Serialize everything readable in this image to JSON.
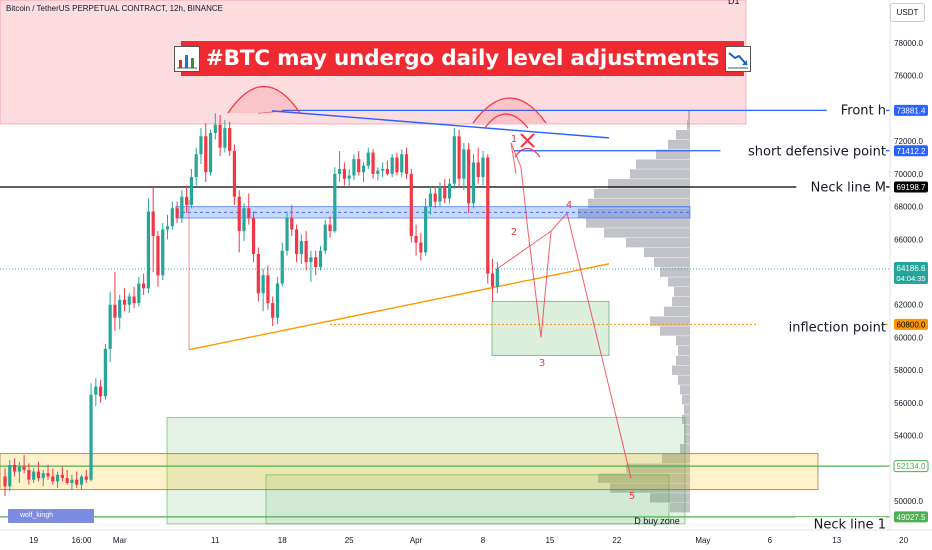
{
  "header": {
    "symbol_title": "Bitcoin / TetherUS PERPETUAL CONTRACT, 12h, BINANCE",
    "timeframe_stub": "D1",
    "currency_button": "USDT"
  },
  "headline": {
    "text": "#BTC may undergo daily level adjustments",
    "left_icon": "bar-chart-icon",
    "right_icon": "chart-decreasing-icon"
  },
  "watermark": "wolf_kingh",
  "colors": {
    "bull": "#26a69a",
    "bear": "#f23645",
    "headline_bg": "#ef2a31",
    "blue_line": "#2962ff",
    "orange_line": "#ff9800",
    "green_line": "#4caf50",
    "projection": "#f23645"
  },
  "chart_data": {
    "type": "candlestick",
    "title": "Bitcoin / TetherUS PERPETUAL CONTRACT, 12h, BINANCE",
    "ylim": [
      49000,
      80000
    ],
    "y_ticks": [
      50000,
      52000,
      54000,
      56000,
      58000,
      60000,
      62000,
      64000,
      66000,
      68000,
      70000,
      72000,
      74000,
      76000,
      78000
    ],
    "y_tick_labels": [
      "50000.0",
      "52000.0",
      "54000.0",
      "56000.0",
      "58000.0",
      "60000.0",
      "62000.0",
      "64000.0",
      "66000.0",
      "68000.0",
      "70000.0",
      "72000.0",
      "74000.0",
      "76000.0",
      "78000.0"
    ],
    "x_ticks": [
      {
        "label": "19",
        "bar": 6
      },
      {
        "label": "16:00",
        "bar": 16
      },
      {
        "label": "Mar",
        "bar": 24
      },
      {
        "label": "11",
        "bar": 44
      },
      {
        "label": "18",
        "bar": 58
      },
      {
        "label": "25",
        "bar": 72
      },
      {
        "label": "Apr",
        "bar": 86
      },
      {
        "label": "8",
        "bar": 100
      },
      {
        "label": "15",
        "bar": 114
      },
      {
        "label": "22",
        "bar": 128
      },
      {
        "label": "May",
        "bar": 146
      },
      {
        "label": "6",
        "bar": 160
      },
      {
        "label": "13",
        "bar": 174
      },
      {
        "label": "20",
        "bar": 188
      }
    ],
    "candles": [
      {
        "o": 51500,
        "h": 52000,
        "l": 50300,
        "c": 50900
      },
      {
        "o": 50900,
        "h": 52500,
        "l": 50600,
        "c": 52200
      },
      {
        "o": 52200,
        "h": 52600,
        "l": 51500,
        "c": 51800
      },
      {
        "o": 51800,
        "h": 52400,
        "l": 51100,
        "c": 52100
      },
      {
        "o": 52100,
        "h": 52800,
        "l": 51700,
        "c": 51900
      },
      {
        "o": 51900,
        "h": 52300,
        "l": 51000,
        "c": 51300
      },
      {
        "o": 51300,
        "h": 52000,
        "l": 51100,
        "c": 51800
      },
      {
        "o": 51800,
        "h": 52400,
        "l": 51200,
        "c": 51400
      },
      {
        "o": 51400,
        "h": 51900,
        "l": 50900,
        "c": 51700
      },
      {
        "o": 51700,
        "h": 52200,
        "l": 51300,
        "c": 51500
      },
      {
        "o": 51500,
        "h": 52000,
        "l": 51000,
        "c": 51200
      },
      {
        "o": 51200,
        "h": 51800,
        "l": 50800,
        "c": 51600
      },
      {
        "o": 51600,
        "h": 52100,
        "l": 51200,
        "c": 51400
      },
      {
        "o": 51400,
        "h": 51900,
        "l": 51000,
        "c": 51100
      },
      {
        "o": 51100,
        "h": 51600,
        "l": 50700,
        "c": 51300
      },
      {
        "o": 51300,
        "h": 51800,
        "l": 50800,
        "c": 51000
      },
      {
        "o": 51000,
        "h": 51600,
        "l": 50700,
        "c": 51500
      },
      {
        "o": 51500,
        "h": 51900,
        "l": 51100,
        "c": 51300
      },
      {
        "o": 51300,
        "h": 57200,
        "l": 51200,
        "c": 56500
      },
      {
        "o": 56500,
        "h": 57500,
        "l": 55800,
        "c": 57000
      },
      {
        "o": 57000,
        "h": 57400,
        "l": 56000,
        "c": 56400
      },
      {
        "o": 56400,
        "h": 59600,
        "l": 56200,
        "c": 59300
      },
      {
        "o": 59300,
        "h": 62800,
        "l": 58500,
        "c": 62000
      },
      {
        "o": 62000,
        "h": 64000,
        "l": 60400,
        "c": 61200
      },
      {
        "o": 61200,
        "h": 62600,
        "l": 60500,
        "c": 62300
      },
      {
        "o": 62300,
        "h": 63000,
        "l": 61600,
        "c": 62000
      },
      {
        "o": 62000,
        "h": 62700,
        "l": 61500,
        "c": 62500
      },
      {
        "o": 62500,
        "h": 63100,
        "l": 61800,
        "c": 62100
      },
      {
        "o": 62100,
        "h": 63700,
        "l": 61900,
        "c": 63300
      },
      {
        "o": 63300,
        "h": 63900,
        "l": 62600,
        "c": 63000
      },
      {
        "o": 63000,
        "h": 68500,
        "l": 62700,
        "c": 67700
      },
      {
        "o": 67700,
        "h": 69200,
        "l": 64000,
        "c": 66200
      },
      {
        "o": 66200,
        "h": 66500,
        "l": 63100,
        "c": 63800
      },
      {
        "o": 63800,
        "h": 67000,
        "l": 63500,
        "c": 66600
      },
      {
        "o": 66600,
        "h": 67500,
        "l": 66000,
        "c": 66800
      },
      {
        "o": 66800,
        "h": 68300,
        "l": 66600,
        "c": 67900
      },
      {
        "o": 67900,
        "h": 68300,
        "l": 67000,
        "c": 67300
      },
      {
        "o": 67300,
        "h": 69000,
        "l": 67000,
        "c": 68600
      },
      {
        "o": 68600,
        "h": 69300,
        "l": 67600,
        "c": 68100
      },
      {
        "o": 68100,
        "h": 70300,
        "l": 67900,
        "c": 69800
      },
      {
        "o": 69800,
        "h": 71600,
        "l": 69300,
        "c": 71200
      },
      {
        "o": 71200,
        "h": 72800,
        "l": 70600,
        "c": 72300
      },
      {
        "o": 72300,
        "h": 73100,
        "l": 69500,
        "c": 70100
      },
      {
        "o": 70100,
        "h": 72700,
        "l": 69900,
        "c": 72500
      },
      {
        "o": 72500,
        "h": 73700,
        "l": 72100,
        "c": 73000
      },
      {
        "o": 73000,
        "h": 73600,
        "l": 71100,
        "c": 71600
      },
      {
        "o": 71600,
        "h": 73300,
        "l": 71300,
        "c": 72800
      },
      {
        "o": 72800,
        "h": 73200,
        "l": 71100,
        "c": 71400
      },
      {
        "o": 71400,
        "h": 71800,
        "l": 68100,
        "c": 68600
      },
      {
        "o": 68600,
        "h": 69000,
        "l": 65200,
        "c": 66500
      },
      {
        "o": 66500,
        "h": 68200,
        "l": 65900,
        "c": 67900
      },
      {
        "o": 67900,
        "h": 68800,
        "l": 66900,
        "c": 67300
      },
      {
        "o": 67300,
        "h": 67700,
        "l": 64600,
        "c": 65100
      },
      {
        "o": 65100,
        "h": 65500,
        "l": 62200,
        "c": 62700
      },
      {
        "o": 62700,
        "h": 64200,
        "l": 61600,
        "c": 63800
      },
      {
        "o": 63800,
        "h": 64400,
        "l": 61700,
        "c": 62100
      },
      {
        "o": 62100,
        "h": 62500,
        "l": 60700,
        "c": 61200
      },
      {
        "o": 61200,
        "h": 63700,
        "l": 60800,
        "c": 63300
      },
      {
        "o": 63300,
        "h": 65800,
        "l": 63100,
        "c": 65300
      },
      {
        "o": 65300,
        "h": 67700,
        "l": 65000,
        "c": 67300
      },
      {
        "o": 67300,
        "h": 68100,
        "l": 66200,
        "c": 66600
      },
      {
        "o": 66600,
        "h": 66900,
        "l": 64600,
        "c": 65100
      },
      {
        "o": 65100,
        "h": 66300,
        "l": 64500,
        "c": 65900
      },
      {
        "o": 65900,
        "h": 66500,
        "l": 64100,
        "c": 64600
      },
      {
        "o": 64600,
        "h": 65300,
        "l": 63400,
        "c": 64900
      },
      {
        "o": 64900,
        "h": 65300,
        "l": 63800,
        "c": 64300
      },
      {
        "o": 64300,
        "h": 65600,
        "l": 64100,
        "c": 65300
      },
      {
        "o": 65300,
        "h": 67200,
        "l": 65100,
        "c": 66900
      },
      {
        "o": 66900,
        "h": 67400,
        "l": 66100,
        "c": 66500
      },
      {
        "o": 66500,
        "h": 70400,
        "l": 66400,
        "c": 70000
      },
      {
        "o": 70000,
        "h": 71400,
        "l": 69500,
        "c": 70300
      },
      {
        "o": 70300,
        "h": 70700,
        "l": 69300,
        "c": 69700
      },
      {
        "o": 69700,
        "h": 70300,
        "l": 69200,
        "c": 69900
      },
      {
        "o": 69900,
        "h": 71200,
        "l": 69600,
        "c": 70900
      },
      {
        "o": 70900,
        "h": 71400,
        "l": 69900,
        "c": 70100
      },
      {
        "o": 70100,
        "h": 70700,
        "l": 69500,
        "c": 70500
      },
      {
        "o": 70500,
        "h": 71600,
        "l": 70300,
        "c": 71300
      },
      {
        "o": 71300,
        "h": 71500,
        "l": 69700,
        "c": 70000
      },
      {
        "o": 70000,
        "h": 70400,
        "l": 69600,
        "c": 70200
      },
      {
        "o": 70200,
        "h": 70700,
        "l": 69800,
        "c": 70300
      },
      {
        "o": 70300,
        "h": 70800,
        "l": 69900,
        "c": 70000
      },
      {
        "o": 70000,
        "h": 71200,
        "l": 69800,
        "c": 71000
      },
      {
        "o": 71000,
        "h": 71300,
        "l": 69900,
        "c": 70100
      },
      {
        "o": 70100,
        "h": 71500,
        "l": 69800,
        "c": 71200
      },
      {
        "o": 71200,
        "h": 71600,
        "l": 69700,
        "c": 70000
      },
      {
        "o": 70000,
        "h": 70300,
        "l": 65800,
        "c": 66200
      },
      {
        "o": 66200,
        "h": 66900,
        "l": 65000,
        "c": 65800
      },
      {
        "o": 65800,
        "h": 66400,
        "l": 64700,
        "c": 65200
      },
      {
        "o": 65200,
        "h": 68500,
        "l": 65000,
        "c": 68000
      },
      {
        "o": 68000,
        "h": 69200,
        "l": 67500,
        "c": 68800
      },
      {
        "o": 68800,
        "h": 69200,
        "l": 67900,
        "c": 68300
      },
      {
        "o": 68300,
        "h": 69500,
        "l": 68000,
        "c": 69200
      },
      {
        "o": 69200,
        "h": 69700,
        "l": 68200,
        "c": 68500
      },
      {
        "o": 68500,
        "h": 69700,
        "l": 68200,
        "c": 69400
      },
      {
        "o": 69400,
        "h": 72800,
        "l": 69100,
        "c": 72300
      },
      {
        "o": 72300,
        "h": 72700,
        "l": 69200,
        "c": 69700
      },
      {
        "o": 69700,
        "h": 71900,
        "l": 69000,
        "c": 71500
      },
      {
        "o": 71500,
        "h": 71900,
        "l": 67600,
        "c": 68200
      },
      {
        "o": 68200,
        "h": 71200,
        "l": 67900,
        "c": 70700
      },
      {
        "o": 70700,
        "h": 71600,
        "l": 69400,
        "c": 69800
      },
      {
        "o": 69800,
        "h": 71400,
        "l": 69300,
        "c": 71000
      },
      {
        "o": 71000,
        "h": 71200,
        "l": 63300,
        "c": 63900
      },
      {
        "o": 63900,
        "h": 64800,
        "l": 62200,
        "c": 63100
      },
      {
        "o": 63100,
        "h": 64600,
        "l": 62700,
        "c": 64200
      }
    ],
    "price_levels": [
      {
        "label": "Front h",
        "value": 73881.4,
        "tag": "73881.4",
        "color": "#2962ff"
      },
      {
        "label": "short defensive point",
        "value": 71412.2,
        "tag": "71412.2",
        "color": "#2962ff"
      },
      {
        "label": "Neck line M",
        "value": 69198.7,
        "tag": "69198.7",
        "color": "#000000"
      },
      {
        "label": "inflection point",
        "value": 60800.0,
        "tag": "60800.0",
        "color": "#ff9800"
      },
      {
        "label": "",
        "value": 52134.0,
        "tag": "52134.0",
        "color": "#4caf50"
      },
      {
        "label": "Neck line 1",
        "value": 49027.5,
        "tag": "49027.5",
        "color": "#4caf50"
      }
    ],
    "current_price": {
      "value": 64186.6,
      "tag": "64186.6",
      "countdown": "04:04:35"
    },
    "zone_labels": {
      "buy_zone": "D buy zone"
    },
    "wave_labels": [
      "1",
      "2",
      "3",
      "4",
      "5"
    ]
  }
}
